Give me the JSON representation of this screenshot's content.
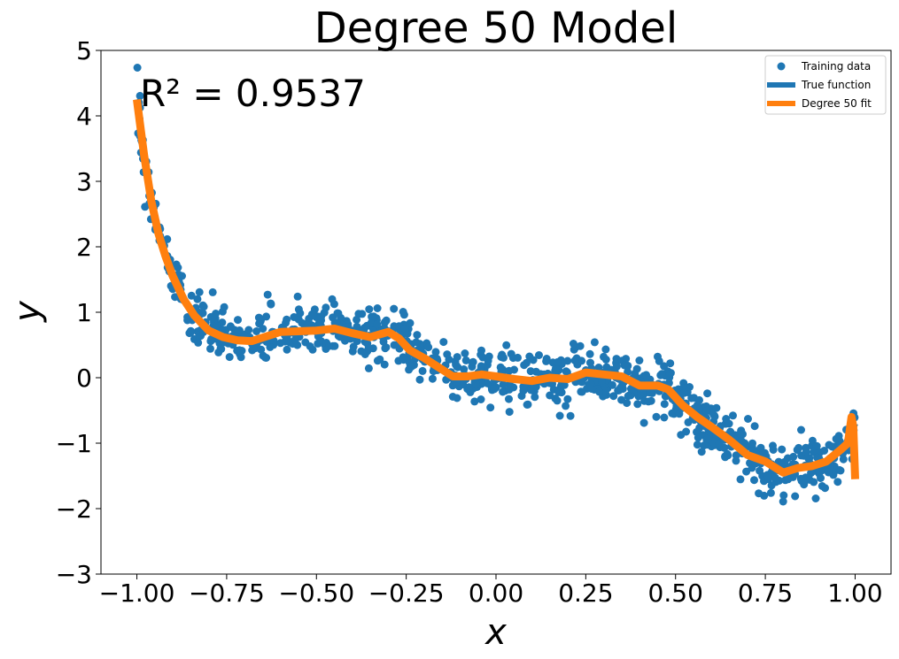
{
  "chart_data": {
    "type": "scatter",
    "title": "Degree 50 Model",
    "xlabel": "x",
    "ylabel": "y",
    "xlim": [
      -1.1,
      1.1
    ],
    "ylim": [
      -3,
      5
    ],
    "x_ticks": [
      -1.0,
      -0.75,
      -0.5,
      -0.25,
      0.0,
      0.25,
      0.5,
      0.75,
      1.0
    ],
    "x_tick_labels": [
      "−1.00",
      "−0.75",
      "−0.50",
      "−0.25",
      "0.00",
      "0.25",
      "0.50",
      "0.75",
      "1.00"
    ],
    "y_ticks": [
      -3,
      -2,
      -1,
      0,
      1,
      2,
      3,
      4,
      5
    ],
    "y_tick_labels": [
      "−3",
      "−2",
      "−1",
      "0",
      "1",
      "2",
      "3",
      "4",
      "5"
    ],
    "grid": false,
    "annotation": "R² = 0.9537",
    "legend": {
      "position": "top-right",
      "entries": [
        {
          "label": "Training data",
          "kind": "marker",
          "color": "#1f77b4"
        },
        {
          "label": "True function",
          "kind": "line",
          "color": "#1f77b4"
        },
        {
          "label": "Degree 50 fit",
          "kind": "line",
          "color": "#ff7f0e"
        }
      ]
    },
    "series": [
      {
        "name": "Training data",
        "kind": "scatter",
        "color": "#1f77b4",
        "n_points": 1000,
        "noise_sd": 0.2
      },
      {
        "name": "True function",
        "kind": "line",
        "color": "#1f77b4",
        "x": [
          -1.0,
          -0.98,
          -0.96,
          -0.94,
          -0.92,
          -0.9,
          -0.87,
          -0.84,
          -0.8,
          -0.76,
          -0.72,
          -0.68,
          -0.64,
          -0.6,
          -0.55,
          -0.5,
          -0.45,
          -0.4,
          -0.35,
          -0.3,
          -0.27,
          -0.24,
          -0.2,
          -0.16,
          -0.12,
          -0.08,
          -0.04,
          0.0,
          0.05,
          0.1,
          0.15,
          0.2,
          0.25,
          0.3,
          0.35,
          0.4,
          0.45,
          0.48,
          0.52,
          0.56,
          0.6,
          0.65,
          0.7,
          0.75,
          0.8,
          0.84,
          0.88,
          0.92,
          0.96,
          0.98,
          1.0
        ],
        "y": [
          4.25,
          3.4,
          2.7,
          2.2,
          1.85,
          1.55,
          1.2,
          0.95,
          0.72,
          0.62,
          0.57,
          0.56,
          0.63,
          0.7,
          0.71,
          0.72,
          0.75,
          0.68,
          0.62,
          0.7,
          0.6,
          0.42,
          0.3,
          0.16,
          0.02,
          0.02,
          0.05,
          0.02,
          -0.02,
          -0.05,
          0.0,
          -0.02,
          0.08,
          0.05,
          0.02,
          -0.12,
          -0.12,
          -0.18,
          -0.42,
          -0.6,
          -0.75,
          -0.95,
          -1.18,
          -1.28,
          -1.45,
          -1.38,
          -1.35,
          -1.28,
          -1.1,
          -1.0,
          -0.7
        ]
      },
      {
        "name": "Degree 50 fit",
        "kind": "line",
        "color": "#ff7f0e",
        "x": [
          -1.0,
          -0.98,
          -0.96,
          -0.94,
          -0.92,
          -0.9,
          -0.87,
          -0.84,
          -0.8,
          -0.76,
          -0.72,
          -0.68,
          -0.64,
          -0.6,
          -0.55,
          -0.5,
          -0.45,
          -0.4,
          -0.35,
          -0.3,
          -0.27,
          -0.24,
          -0.2,
          -0.16,
          -0.12,
          -0.08,
          -0.04,
          0.0,
          0.05,
          0.1,
          0.15,
          0.2,
          0.25,
          0.3,
          0.35,
          0.4,
          0.45,
          0.48,
          0.52,
          0.56,
          0.6,
          0.65,
          0.7,
          0.75,
          0.8,
          0.84,
          0.88,
          0.92,
          0.96,
          0.98,
          0.99,
          0.995,
          1.0
        ],
        "y": [
          4.25,
          3.4,
          2.7,
          2.2,
          1.85,
          1.55,
          1.2,
          0.95,
          0.72,
          0.62,
          0.57,
          0.56,
          0.63,
          0.7,
          0.71,
          0.72,
          0.75,
          0.68,
          0.62,
          0.7,
          0.6,
          0.42,
          0.3,
          0.16,
          0.02,
          0.02,
          0.05,
          0.02,
          -0.02,
          -0.05,
          0.0,
          -0.02,
          0.08,
          0.05,
          0.02,
          -0.12,
          -0.12,
          -0.18,
          -0.42,
          -0.6,
          -0.75,
          -0.95,
          -1.18,
          -1.28,
          -1.45,
          -1.38,
          -1.35,
          -1.28,
          -1.1,
          -1.0,
          -0.6,
          -0.75,
          -1.55
        ]
      }
    ]
  }
}
